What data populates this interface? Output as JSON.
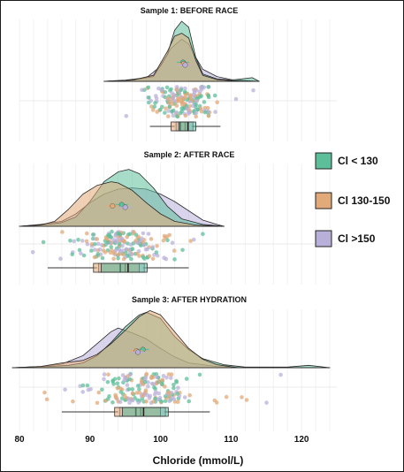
{
  "chart_data": {
    "type": "raincloud",
    "xlabel": "Chloride (mmol/L)",
    "xlim": [
      78,
      125
    ],
    "x_ticks": [
      80,
      90,
      100,
      110,
      120
    ],
    "grid": true,
    "legend_position": "right",
    "groups": [
      {
        "key": "lt130",
        "label": "Cl < 130",
        "color": "#5dbf9a"
      },
      {
        "key": "mid",
        "label": "Cl  130-150",
        "color": "#e2aa79"
      },
      {
        "key": "gt150",
        "label": "Cl  >150",
        "color": "#b9b0da"
      }
    ],
    "panels": [
      {
        "title": "Sample 1: BEFORE RACE",
        "density_range": [
          92,
          114
        ],
        "density": {
          "lt130": [
            [
              92,
              0
            ],
            [
              96,
              0.02
            ],
            [
              99,
              0.08
            ],
            [
              101,
              0.45
            ],
            [
              102,
              0.85
            ],
            [
              103,
              1.0
            ],
            [
              104,
              0.9
            ],
            [
              105,
              0.4
            ],
            [
              106,
              0.12
            ],
            [
              108,
              0.04
            ],
            [
              110,
              0.02
            ],
            [
              113,
              0.06
            ],
            [
              114,
              0
            ]
          ],
          "mid": [
            [
              92,
              0
            ],
            [
              96,
              0.02
            ],
            [
              99,
              0.1
            ],
            [
              101,
              0.5
            ],
            [
              102,
              0.75
            ],
            [
              103,
              0.8
            ],
            [
              104,
              0.72
            ],
            [
              105,
              0.35
            ],
            [
              106,
              0.1
            ],
            [
              108,
              0.03
            ],
            [
              110,
              0.01
            ],
            [
              114,
              0
            ]
          ],
          "gt150": [
            [
              92,
              0
            ],
            [
              95,
              0.02
            ],
            [
              98,
              0.06
            ],
            [
              100,
              0.25
            ],
            [
              101.5,
              0.55
            ],
            [
              103,
              0.7
            ],
            [
              104,
              0.62
            ],
            [
              105,
              0.4
            ],
            [
              106,
              0.2
            ],
            [
              108,
              0.08
            ],
            [
              110,
              0.03
            ],
            [
              114,
              0
            ]
          ]
        },
        "means": {
          "lt130": 103.2,
          "mid": 103.3,
          "gt150": 103.5
        },
        "points_range": [
          93,
          114
        ],
        "points_spread": 2.4,
        "box": {
          "whisker_low": 98.5,
          "q1": 102,
          "median": 103.3,
          "q3": 104.4,
          "whisker_high": 108.5
        }
      },
      {
        "title": "Sample 2: AFTER RACE",
        "density_range": [
          80,
          109
        ],
        "density": {
          "lt130": [
            [
              80,
              0
            ],
            [
              84,
              0.03
            ],
            [
              86,
              0.06
            ],
            [
              88,
              0.15
            ],
            [
              90,
              0.4
            ],
            [
              92,
              0.72
            ],
            [
              94,
              0.88
            ],
            [
              95.5,
              0.92
            ],
            [
              97,
              0.85
            ],
            [
              99,
              0.62
            ],
            [
              101,
              0.32
            ],
            [
              103,
              0.12
            ],
            [
              106,
              0.03
            ],
            [
              109,
              0
            ]
          ],
          "mid": [
            [
              80,
              0
            ],
            [
              83,
              0.02
            ],
            [
              85,
              0.08
            ],
            [
              87,
              0.28
            ],
            [
              89,
              0.52
            ],
            [
              91,
              0.66
            ],
            [
              93,
              0.72
            ],
            [
              94,
              0.7
            ],
            [
              96,
              0.58
            ],
            [
              98,
              0.38
            ],
            [
              100,
              0.2
            ],
            [
              102,
              0.08
            ],
            [
              105,
              0.02
            ],
            [
              109,
              0
            ]
          ],
          "gt150": [
            [
              80,
              0
            ],
            [
              83,
              0.03
            ],
            [
              86,
              0.08
            ],
            [
              88,
              0.2
            ],
            [
              90,
              0.38
            ],
            [
              92,
              0.52
            ],
            [
              94,
              0.6
            ],
            [
              96,
              0.62
            ],
            [
              98,
              0.6
            ],
            [
              100,
              0.52
            ],
            [
              102,
              0.4
            ],
            [
              104,
              0.25
            ],
            [
              106,
              0.1
            ],
            [
              108,
              0.03
            ],
            [
              109,
              0
            ]
          ]
        },
        "means": {
          "lt130": 94.5,
          "mid": 93.2,
          "gt150": 95.0
        },
        "points_range": [
          81,
          106
        ],
        "points_spread": 3.2,
        "box": {
          "whisker_low": 84,
          "q1": 91,
          "median": 94.8,
          "q3": 97.5,
          "whisker_high": 104
        }
      },
      {
        "title": "Sample 3: AFTER HYDRATION",
        "density_range": [
          79,
          124
        ],
        "density": {
          "lt130": [
            [
              79,
              0
            ],
            [
              84,
              0.02
            ],
            [
              87,
              0.04
            ],
            [
              89,
              0.08
            ],
            [
              91,
              0.2
            ],
            [
              93,
              0.42
            ],
            [
              95,
              0.68
            ],
            [
              97,
              0.88
            ],
            [
              98,
              0.92
            ],
            [
              100,
              0.82
            ],
            [
              102,
              0.52
            ],
            [
              104,
              0.3
            ],
            [
              106,
              0.15
            ],
            [
              109,
              0.05
            ],
            [
              112,
              0.01
            ],
            [
              118,
              0.01
            ],
            [
              121,
              0.04
            ],
            [
              124,
              0
            ]
          ],
          "mid": [
            [
              79,
              0
            ],
            [
              83,
              0.02
            ],
            [
              86,
              0.08
            ],
            [
              89,
              0.12
            ],
            [
              91,
              0.22
            ],
            [
              93,
              0.4
            ],
            [
              95,
              0.62
            ],
            [
              97,
              0.85
            ],
            [
              98.5,
              0.95
            ],
            [
              100,
              0.88
            ],
            [
              102,
              0.6
            ],
            [
              104,
              0.32
            ],
            [
              106,
              0.14
            ],
            [
              108,
              0.05
            ],
            [
              111,
              0
            ],
            [
              124,
              0
            ]
          ],
          "gt150": [
            [
              79,
              0
            ],
            [
              83,
              0.02
            ],
            [
              86,
              0.06
            ],
            [
              89,
              0.2
            ],
            [
              91,
              0.4
            ],
            [
              93,
              0.6
            ],
            [
              94,
              0.66
            ],
            [
              96,
              0.58
            ],
            [
              98,
              0.48
            ],
            [
              100,
              0.32
            ],
            [
              102,
              0.18
            ],
            [
              104,
              0.08
            ],
            [
              108,
              0.02
            ],
            [
              112,
              0
            ],
            [
              124,
              0
            ]
          ]
        },
        "means": {
          "lt130": 97.5,
          "mid": 96.6,
          "gt150": 96.8
        },
        "points_range": [
          83,
          122
        ],
        "points_spread": 3.4,
        "box": {
          "whisker_low": 86,
          "q1": 94,
          "median": 97,
          "q3": 100.5,
          "whisker_high": 107
        }
      }
    ]
  }
}
